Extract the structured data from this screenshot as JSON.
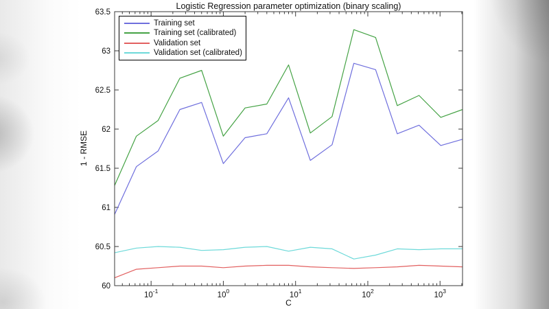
{
  "page": {
    "background": "#ffffff"
  },
  "chart_data": {
    "type": "line",
    "title": "Logistic Regression parameter optimization (binary scaling)",
    "xlabel": "C",
    "ylabel": "1 - RMSE",
    "x_scale": "log",
    "xlim": [
      0.03125,
      2048
    ],
    "ylim": [
      60,
      63.5
    ],
    "y_ticks": [
      60,
      60.5,
      61,
      61.5,
      62,
      62.5,
      63,
      63.5
    ],
    "x_major_ticks": [
      0.1,
      1,
      10,
      100,
      1000
    ],
    "x_tick_labels": [
      "10^-1",
      "10^0",
      "10^1",
      "10^2",
      "10^3"
    ],
    "grid": false,
    "legend_position": "top-left",
    "axis_color": "#3a3a3a",
    "x": [
      0.03125,
      0.0625,
      0.125,
      0.25,
      0.5,
      1,
      2,
      4,
      8,
      16,
      32,
      64,
      128,
      256,
      512,
      1024,
      2048
    ],
    "series": [
      {
        "name": "Training set",
        "color": "#6e6edd",
        "values": [
          60.91,
          61.52,
          61.72,
          62.25,
          62.34,
          61.56,
          61.89,
          61.94,
          62.4,
          61.6,
          61.8,
          62.84,
          62.76,
          61.94,
          62.05,
          61.79,
          61.87
        ]
      },
      {
        "name": "Training set (calibrated)",
        "color": "#44a244",
        "values": [
          61.28,
          61.91,
          62.11,
          62.65,
          62.75,
          61.91,
          62.27,
          62.32,
          62.82,
          61.95,
          62.16,
          63.27,
          63.17,
          62.3,
          62.43,
          62.15,
          62.25
        ]
      },
      {
        "name": "Validation set",
        "color": "#e25f5f",
        "values": [
          60.1,
          60.21,
          60.23,
          60.25,
          60.25,
          60.23,
          60.25,
          60.26,
          60.26,
          60.24,
          60.23,
          60.22,
          60.23,
          60.24,
          60.26,
          60.25,
          60.24
        ]
      },
      {
        "name": "Validation set (calibrated)",
        "color": "#6cd9d9",
        "values": [
          60.42,
          60.48,
          60.5,
          60.49,
          60.45,
          60.46,
          60.49,
          60.5,
          60.44,
          60.49,
          60.47,
          60.34,
          60.39,
          60.47,
          60.46,
          60.47,
          60.47
        ]
      }
    ]
  }
}
